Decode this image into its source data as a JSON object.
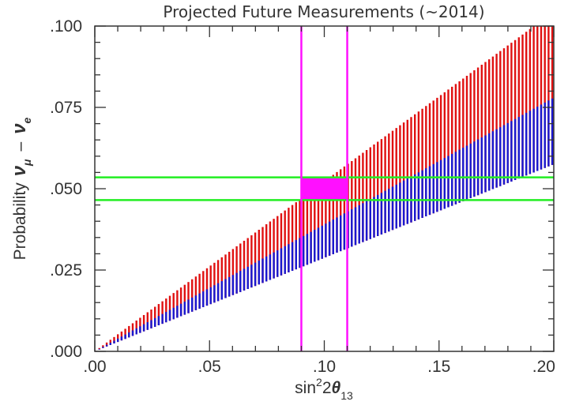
{
  "chart_data": {
    "type": "area",
    "title": "Projected Future Measurements (~2014)",
    "xlabel": {
      "base": "sin",
      "sup": "2",
      "mid": "2",
      "greek": "θ",
      "sub": "13"
    },
    "ylabel": {
      "text": "Probability",
      "nu1": "ν",
      "sub1": "μ",
      "dash": "–",
      "nu2": "ν",
      "sub2": "e"
    },
    "xlim": [
      0,
      0.2
    ],
    "ylim": [
      0,
      0.1
    ],
    "x_ticks": [
      {
        "value": 0,
        "label": ".00"
      },
      {
        "value": 0.05,
        "label": ".05"
      },
      {
        "value": 0.1,
        "label": ".10"
      },
      {
        "value": 0.15,
        "label": ".15"
      },
      {
        "value": 0.2,
        "label": ".20"
      }
    ],
    "y_ticks": [
      {
        "value": 0,
        "label": ".000"
      },
      {
        "value": 0.025,
        "label": ".025"
      },
      {
        "value": 0.05,
        "label": ".050"
      },
      {
        "value": 0.075,
        "label": ".075"
      },
      {
        "value": 0.1,
        "label": ".100"
      }
    ],
    "series": [
      {
        "color": "#e01010",
        "style": "vertical-hatch",
        "x": [
          0,
          0.2
        ],
        "y_low": [
          0,
          0.0575
        ],
        "y_high": [
          0,
          0.1045
        ]
      },
      {
        "color": "#1818d0",
        "style": "vertical-hatch",
        "x": [
          0,
          0.2
        ],
        "y_low": [
          0,
          0.0575
        ],
        "y_high": [
          0,
          0.078
        ]
      }
    ],
    "vertical_lines": {
      "color": "#ff10ff",
      "x": [
        0.09,
        0.11
      ]
    },
    "horizontal_lines": {
      "color": "#22ee22",
      "y": [
        0.0465,
        0.0535
      ]
    },
    "highlight_box": {
      "color": "#ff10ff",
      "x": [
        0.09,
        0.11
      ],
      "y": [
        0.0465,
        0.0535
      ]
    },
    "grid": false,
    "legend": "none"
  }
}
